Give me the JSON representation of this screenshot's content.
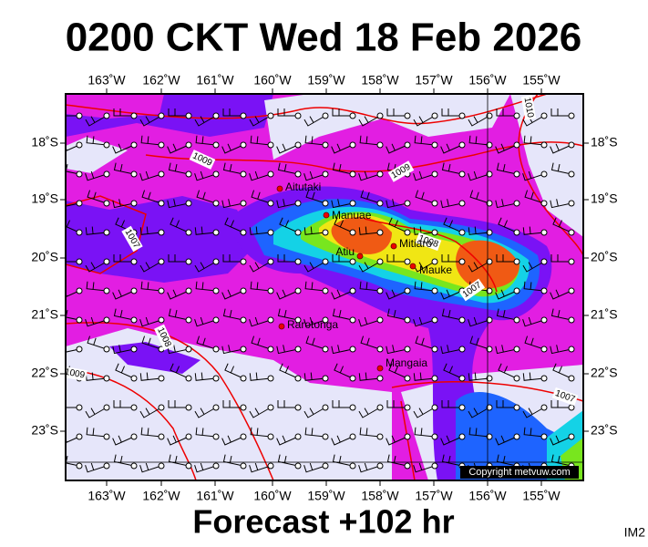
{
  "header": {
    "title": "0200 CKT Wed 18 Feb 2026"
  },
  "axes": {
    "longitude_labels": [
      "163˚W",
      "162˚W",
      "161˚W",
      "160˚W",
      "159˚W",
      "158˚W",
      "157˚W",
      "156˚W",
      "155˚W"
    ],
    "latitude_labels": [
      "18˚S",
      "19˚S",
      "20˚S",
      "21˚S",
      "22˚S",
      "23˚S"
    ]
  },
  "places": [
    {
      "label": "Aitutaki"
    },
    {
      "label": "Manuae"
    },
    {
      "label": "Mitiaro"
    },
    {
      "label": "Atiu"
    },
    {
      "label": "Mauke"
    },
    {
      "label": "Rarotonga"
    },
    {
      "label": "Mangaia"
    }
  ],
  "isobar_labels": [
    "1010",
    "1009",
    "1009",
    "1007",
    "1008",
    "1007",
    "1008",
    "1009",
    "1007"
  ],
  "copyright": "Copyright metvuw.com",
  "footer": {
    "forecast": "Forecast +102 hr",
    "code": "IM2"
  }
}
